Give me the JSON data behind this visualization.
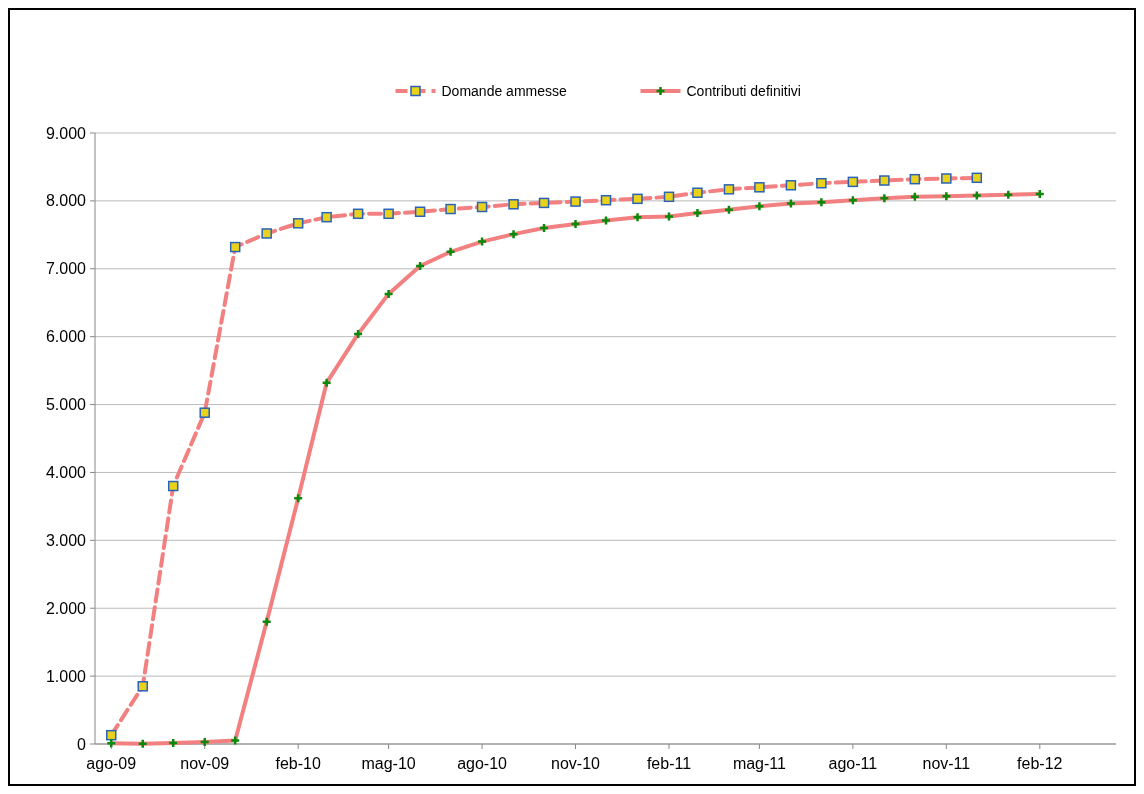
{
  "chart_data": {
    "type": "line",
    "x": [
      "2009-08",
      "2009-09",
      "2009-10",
      "2009-11",
      "2009-12",
      "2010-01",
      "2010-02",
      "2010-03",
      "2010-04",
      "2010-05",
      "2010-06",
      "2010-07",
      "2010-08",
      "2010-09",
      "2010-10",
      "2010-11",
      "2010-12",
      "2011-01",
      "2011-02",
      "2011-03",
      "2011-04",
      "2011-05",
      "2011-06",
      "2011-07",
      "2011-08",
      "2011-09",
      "2011-10",
      "2011-11",
      "2011-12",
      "2012-01",
      "2012-02"
    ],
    "series": [
      {
        "name": "Domande ammesse",
        "color": "#f28080",
        "marker": "square",
        "line_style": "dashed",
        "values": [
          130,
          850,
          3800,
          4880,
          7320,
          7520,
          7670,
          7760,
          7810,
          7810,
          7840,
          7880,
          7910,
          7950,
          7970,
          7990,
          8010,
          8030,
          8060,
          8120,
          8170,
          8200,
          8230,
          8260,
          8280,
          8300,
          8320,
          8330,
          8340,
          null,
          null
        ]
      },
      {
        "name": "Contributi definitivi",
        "color": "#f28080",
        "marker": "cross",
        "line_style": "solid",
        "values": [
          10,
          5,
          15,
          30,
          50,
          1800,
          3620,
          5320,
          6040,
          6630,
          7040,
          7250,
          7400,
          7510,
          7600,
          7660,
          7710,
          7760,
          7770,
          7820,
          7870,
          7920,
          7960,
          7980,
          8010,
          8040,
          8060,
          8070,
          8080,
          8090,
          8100
        ]
      }
    ],
    "xlim": [
      "2009-07-16",
      "2012-04-16"
    ],
    "xticks": [
      {
        "value": "2009-08",
        "label": "ago-09"
      },
      {
        "value": "2009-11",
        "label": "nov-09"
      },
      {
        "value": "2010-02",
        "label": "feb-10"
      },
      {
        "value": "2010-05",
        "label": "mag-10"
      },
      {
        "value": "2010-08",
        "label": "ago-10"
      },
      {
        "value": "2010-11",
        "label": "nov-10"
      },
      {
        "value": "2011-02",
        "label": "feb-11"
      },
      {
        "value": "2011-05",
        "label": "mag-11"
      },
      {
        "value": "2011-08",
        "label": "ago-11"
      },
      {
        "value": "2011-11",
        "label": "nov-11"
      },
      {
        "value": "2012-02",
        "label": "feb-12"
      }
    ],
    "ylim": [
      0,
      9000
    ],
    "yticks": [
      0,
      {
        "value": 1000,
        "label": "1.000"
      },
      {
        "value": 2000,
        "label": "2.000"
      },
      {
        "value": 3000,
        "label": "3.000"
      },
      {
        "value": 4000,
        "label": "4.000"
      },
      {
        "value": 5000,
        "label": "5.000"
      },
      {
        "value": 6000,
        "label": "6.000"
      },
      {
        "value": 7000,
        "label": "7.000"
      },
      {
        "value": 8000,
        "label": "8.000"
      },
      {
        "value": 9000,
        "label": "9.000"
      }
    ],
    "grid": "y",
    "legend": "top"
  }
}
